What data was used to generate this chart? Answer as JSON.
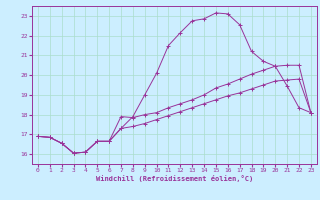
{
  "xlabel": "Windchill (Refroidissement éolien,°C)",
  "bg_color": "#cceeff",
  "grid_color": "#aaddcc",
  "line_color": "#993399",
  "xlim": [
    -0.5,
    23.5
  ],
  "ylim": [
    15.5,
    23.5
  ],
  "yticks": [
    16,
    17,
    18,
    19,
    20,
    21,
    22,
    23
  ],
  "xticks": [
    0,
    1,
    2,
    3,
    4,
    5,
    6,
    7,
    8,
    9,
    10,
    11,
    12,
    13,
    14,
    15,
    16,
    17,
    18,
    19,
    20,
    21,
    22,
    23
  ],
  "curve1_x": [
    0,
    1,
    2,
    3,
    4,
    5,
    6,
    7,
    8,
    9,
    10,
    11,
    12,
    13,
    14,
    15,
    16,
    17,
    18,
    19,
    20,
    21,
    22,
    23
  ],
  "curve1_y": [
    16.9,
    16.85,
    16.55,
    16.05,
    16.1,
    16.65,
    16.65,
    17.9,
    17.85,
    18.0,
    18.1,
    18.35,
    18.55,
    18.75,
    19.0,
    19.35,
    19.55,
    19.8,
    20.05,
    20.25,
    20.45,
    20.5,
    20.5,
    18.1
  ],
  "curve2_x": [
    0,
    1,
    2,
    3,
    4,
    5,
    6,
    7,
    8,
    9,
    10,
    11,
    12,
    13,
    14,
    15,
    16,
    17,
    18,
    19,
    20,
    21,
    22,
    23
  ],
  "curve2_y": [
    16.9,
    16.85,
    16.55,
    16.05,
    16.1,
    16.65,
    16.65,
    17.3,
    17.4,
    17.55,
    17.75,
    17.95,
    18.15,
    18.35,
    18.55,
    18.75,
    18.95,
    19.1,
    19.3,
    19.5,
    19.7,
    19.75,
    19.8,
    18.1
  ],
  "curve3_x": [
    0,
    1,
    2,
    3,
    4,
    5,
    6,
    7,
    8,
    9,
    10,
    11,
    12,
    13,
    14,
    15,
    16,
    17,
    18,
    19,
    20,
    21,
    22,
    23
  ],
  "curve3_y": [
    16.9,
    16.85,
    16.55,
    16.05,
    16.1,
    16.65,
    16.65,
    17.3,
    17.9,
    19.0,
    20.1,
    21.5,
    22.15,
    22.75,
    22.85,
    23.15,
    23.1,
    22.55,
    21.2,
    20.7,
    20.45,
    19.45,
    18.35,
    18.1
  ]
}
